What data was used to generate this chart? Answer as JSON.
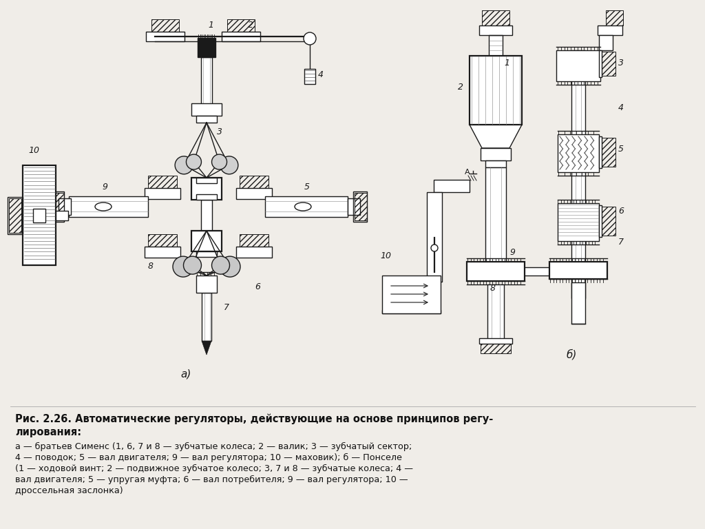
{
  "background_color": "#f0ede8",
  "title_line1": "Рис. 2.26. Автоматические регуляторы, действующие на основе принципов регу-",
  "title_line2": "лирования:",
  "caption_line1": "а — братьев Сименс (1, 6, 7 и 8 — зубчатые колеса; 2 — валик; 3 — зубчатый сектор;",
  "caption_line2": "4 — поводок; 5 — вал двигателя; 9 — вал регулятора; 10 — маховик); б — Понселе",
  "caption_line3": "(1 — ходовой винт; 2 — подвижное зубчатое колесо; 3, 7 и 8 — зубчатые колеса; 4 —",
  "caption_line4": "вал двигателя; 5 — упругая муфта; 6 — вал потребителя; 9 — вал регулятора; 10 —",
  "caption_line5": "дроссельная заслонка)",
  "label_a": "а)",
  "label_b": "б)",
  "fig_width": 10.24,
  "fig_height": 7.68,
  "dpi": 100
}
